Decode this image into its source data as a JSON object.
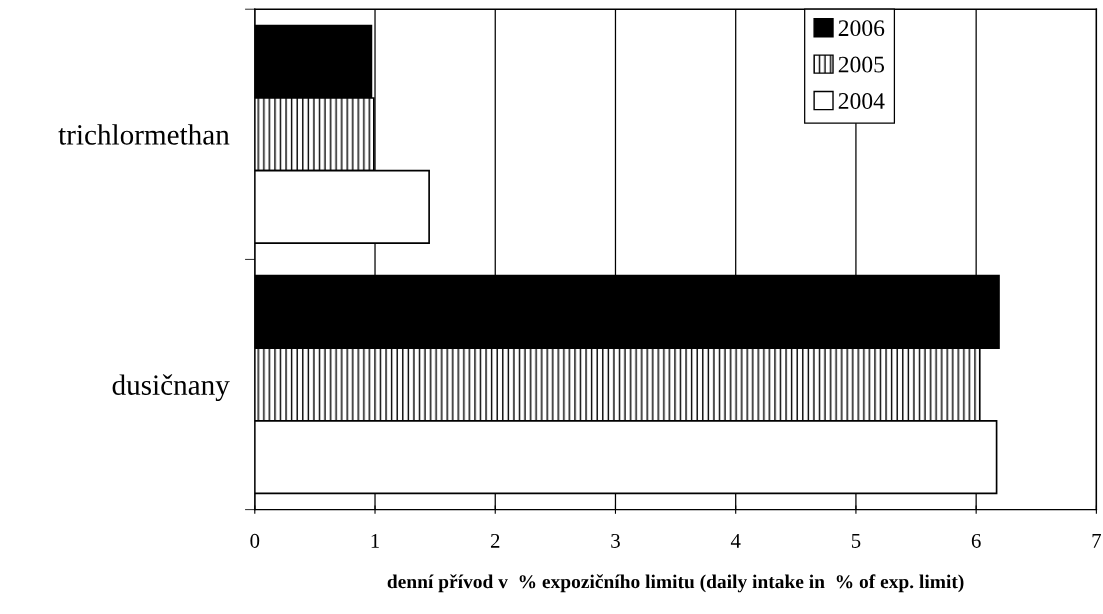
{
  "chart_data": {
    "type": "bar",
    "orientation": "horizontal",
    "categories": [
      "trichlormethan",
      "dusičnany"
    ],
    "series": [
      {
        "name": "2006",
        "color": "#000000",
        "values": [
          0.97,
          6.19
        ]
      },
      {
        "name": "2005",
        "color": "#000000",
        "values": [
          0.99,
          6.03
        ]
      },
      {
        "name": "2004",
        "color": "#ffffff",
        "values": [
          1.45,
          6.17
        ]
      }
    ],
    "xlabel": "denní přívod v  % expozičního limitu (daily intake in  % of exp. limit)",
    "xlim": [
      0,
      7
    ],
    "xticks": [
      0,
      1,
      2,
      3,
      4,
      5,
      6,
      7
    ],
    "grid": "x",
    "legend": "top right"
  }
}
